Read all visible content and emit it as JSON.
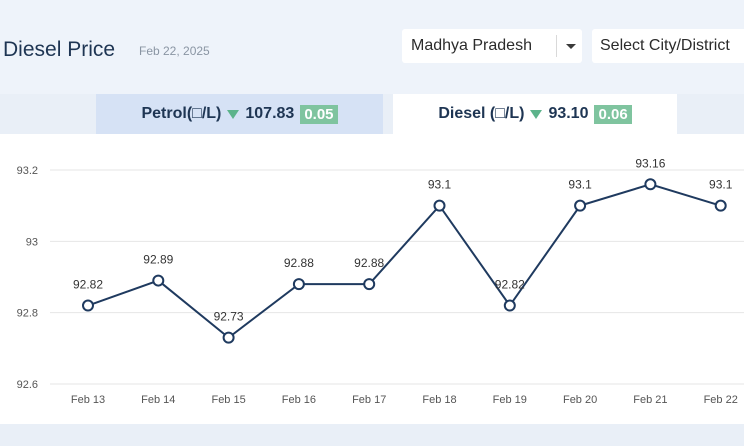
{
  "header": {
    "title": "Diesel Price",
    "date": "Feb 22, 2025",
    "state_select": "Madhya Pradesh",
    "city_select": "Select City/District"
  },
  "tabs": [
    {
      "label": "Petrol(□/L)",
      "price": "107.83",
      "change": "0.05",
      "trend": "down"
    },
    {
      "label": "Diesel (□/L)",
      "price": "93.10",
      "change": "0.06",
      "trend": "down"
    }
  ],
  "colors": {
    "line": "#1f3a5f",
    "change_badge": "#7fc49f",
    "trend_down": "#5cb38b"
  },
  "chart_data": {
    "type": "line",
    "categories": [
      "Feb 13",
      "Feb 14",
      "Feb 15",
      "Feb 16",
      "Feb 17",
      "Feb 18",
      "Feb 19",
      "Feb 20",
      "Feb 21",
      "Feb 22"
    ],
    "values": [
      92.82,
      92.89,
      92.73,
      92.88,
      92.88,
      93.1,
      92.82,
      93.1,
      93.16,
      93.1
    ],
    "labels": [
      "92.82",
      "92.89",
      "92.73",
      "92.88",
      "92.88",
      "93.1",
      "92.82",
      "93.1",
      "93.16",
      "93.1"
    ],
    "yticks": [
      "93.2",
      "93",
      "92.8",
      "92.6"
    ],
    "ylim": [
      92.6,
      93.2
    ],
    "grid": true
  }
}
